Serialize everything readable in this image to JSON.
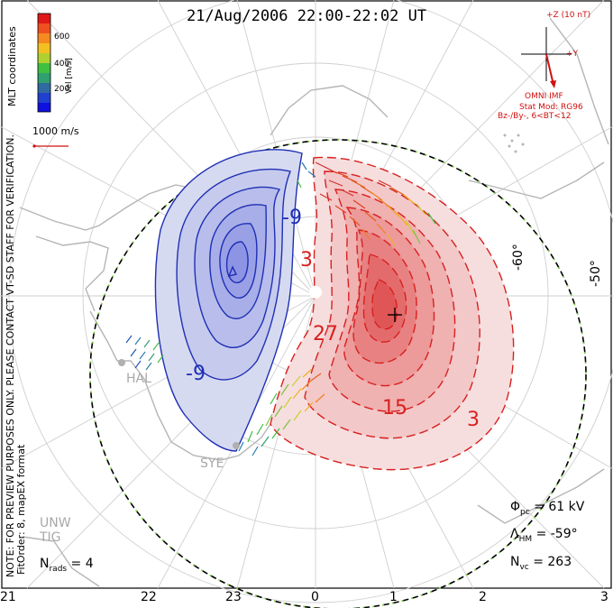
{
  "title": "21/Aug/2006 22:00-22:02 UT",
  "coords_label": "MLT coordinates",
  "preview_note": "NOTE: FOR PREVIEW PURPOSES ONLY. PLEASE CONTACT VT-SD STAFF FOR VERIFICATION.",
  "fit_note": "FitOrder: 8, mapEX format",
  "colorbar": {
    "label": "Vel [m/s]",
    "ticks": [
      "600",
      "400",
      "200"
    ],
    "colors": [
      "#e01818",
      "#f05020",
      "#f58a20",
      "#f2c020",
      "#b0d030",
      "#40c040",
      "#30a070",
      "#306aa0",
      "#2040d0",
      "#1010e0"
    ]
  },
  "velocity_scale": "1000 m/s",
  "imf": {
    "z_label": "+Z (10 nT)",
    "y_label": "+Y",
    "source": "OMNI IMF",
    "model": "Stat Mod: RG96",
    "condition": "Bz-/By-, 6<BT<12"
  },
  "latitudes": [
    "-60°",
    "-50°"
  ],
  "contour_labels_neg": [
    "-9",
    "-9"
  ],
  "contour_labels_pos": [
    "3",
    "27",
    "15",
    "3"
  ],
  "stations": [
    "HAL",
    "SYE",
    "UNW",
    "TIG"
  ],
  "stats": {
    "phi_symbol": "Φ",
    "phi_sub": "pc",
    "phi_value": " = 61 kV",
    "lambda_symbol": "Λ",
    "lambda_sub": "HM",
    "lambda_value": " = -59°",
    "nvc_symbol": "N",
    "nvc_sub": "vc",
    "nvc_value": " = 263",
    "nrads_symbol": "N",
    "nrads_sub": "rads",
    "nrads_value": " = 4"
  },
  "mlt_ticks": [
    "21",
    "22",
    "23",
    "0",
    "1",
    "2",
    "3"
  ]
}
